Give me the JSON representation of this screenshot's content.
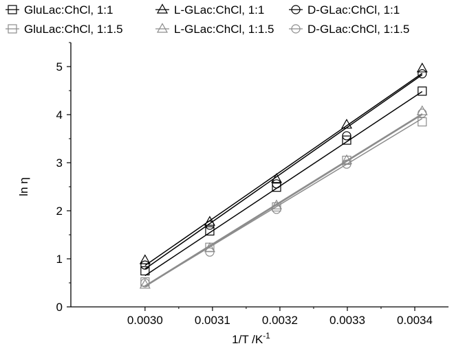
{
  "chart_data": {
    "type": "scatter",
    "xlabel_main": "1/T /K",
    "xlabel_sup": "-1",
    "ylabel": "ln η",
    "xlim": [
      0.00289,
      0.00345
    ],
    "ylim": [
      0,
      5.5
    ],
    "xticks": [
      0.003,
      0.0031,
      0.0032,
      0.0033,
      0.0034
    ],
    "xtick_labels": [
      "0.0030",
      "0.0031",
      "0.0032",
      "0.0033",
      "0.0034"
    ],
    "yticks": [
      0,
      1,
      2,
      3,
      4,
      5
    ],
    "ytick_labels": [
      "0",
      "1",
      "2",
      "3",
      "4",
      "5"
    ],
    "x": [
      0.003,
      0.003096,
      0.003195,
      0.003299,
      0.003411
    ],
    "grid": false,
    "legend": "top",
    "series": [
      {
        "name": "GluLac:ChCl, 1:1",
        "marker": "square",
        "color": "#000000",
        "values": [
          0.75,
          1.58,
          2.49,
          3.47,
          4.49
        ],
        "fit": [
          0.65,
          4.48
        ]
      },
      {
        "name": "L-GLac:ChCl, 1:1",
        "marker": "triangle",
        "color": "#000000",
        "values": [
          0.97,
          1.77,
          2.66,
          3.79,
          4.96
        ],
        "fit": [
          0.86,
          4.86
        ]
      },
      {
        "name": "D-GLac:ChCl, 1:1",
        "marker": "circle",
        "color": "#000000",
        "values": [
          0.87,
          1.7,
          2.56,
          3.56,
          4.85
        ],
        "fit": [
          0.79,
          4.83
        ]
      },
      {
        "name": "GluLac:ChCl, 1:1.5",
        "marker": "square",
        "color": "#8c8c8c",
        "values": [
          0.52,
          1.24,
          2.08,
          3.05,
          3.85
        ],
        "fit": [
          0.43,
          3.92
        ]
      },
      {
        "name": "L-GLac:ChCl, 1:1.5",
        "marker": "triangle",
        "color": "#8c8c8c",
        "values": [
          0.46,
          1.22,
          2.11,
          3.05,
          4.07
        ],
        "fit": [
          0.42,
          4.0
        ]
      },
      {
        "name": "D-GLac:ChCl, 1:1.5",
        "marker": "circle",
        "color": "#8c8c8c",
        "values": [
          0.5,
          1.14,
          2.03,
          2.97,
          4.03
        ],
        "fit": [
          0.44,
          4.02
        ]
      }
    ]
  }
}
